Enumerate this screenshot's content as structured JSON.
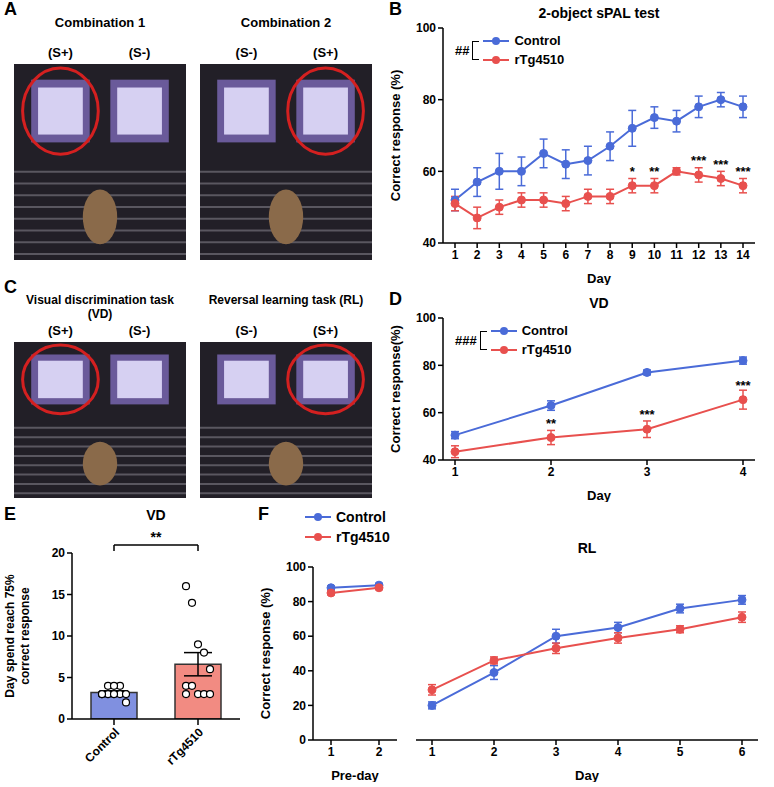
{
  "chart_data": [
    {
      "panel": "B",
      "type": "line",
      "title": "2-object sPAL test",
      "xlabel": "Day",
      "ylabel": "Correct response (%)",
      "categories": [
        1,
        2,
        3,
        4,
        5,
        6,
        7,
        8,
        9,
        10,
        11,
        12,
        13,
        14
      ],
      "ylim": [
        40,
        100
      ],
      "yticks": [
        40,
        60,
        80,
        100
      ],
      "legend": "top-left",
      "annotation": "##",
      "series": [
        {
          "name": "Control",
          "color": "#4a6bd8",
          "marker": "circle",
          "values": [
            52,
            57,
            60,
            60,
            65,
            62,
            63,
            67,
            72,
            75,
            74,
            78,
            80,
            78
          ],
          "errors": [
            3,
            4,
            5,
            4,
            4,
            4,
            4,
            4,
            5,
            3,
            3,
            3,
            2,
            3
          ]
        },
        {
          "name": "rTg4510",
          "color": "#e8504e",
          "marker": "circle",
          "values": [
            51,
            47,
            50,
            52,
            52,
            51,
            53,
            53,
            56,
            56,
            60,
            59,
            58,
            56
          ],
          "errors": [
            2,
            3,
            2,
            2,
            2,
            2,
            2,
            2,
            2,
            2,
            1,
            2,
            2,
            2
          ],
          "significance": [
            null,
            null,
            null,
            null,
            null,
            null,
            null,
            null,
            "*",
            "**",
            null,
            "***",
            "***",
            "***"
          ]
        }
      ]
    },
    {
      "panel": "D",
      "type": "line",
      "title": "VD",
      "xlabel": "Day",
      "ylabel": "Correct response(%)",
      "categories": [
        1,
        2,
        3,
        4
      ],
      "ylim": [
        40,
        100
      ],
      "yticks": [
        40,
        60,
        80,
        100
      ],
      "legend": "top-left",
      "annotation": "###",
      "series": [
        {
          "name": "Control",
          "color": "#4a6bd8",
          "marker": "circle",
          "values": [
            50.5,
            63,
            77,
            82
          ],
          "errors": [
            1.5,
            2,
            1,
            1.5
          ]
        },
        {
          "name": "rTg4510",
          "color": "#e8504e",
          "marker": "circle",
          "values": [
            43.5,
            49.5,
            53,
            65.5
          ],
          "errors": [
            2.5,
            3,
            3.5,
            4
          ],
          "significance": [
            null,
            "**",
            "***",
            "***"
          ]
        }
      ]
    },
    {
      "panel": "E",
      "type": "bar",
      "title": "VD",
      "ylabel": "Day spend reach 75% correct response",
      "categories": [
        "Control",
        "rTg4510"
      ],
      "values": [
        3.2,
        6.6
      ],
      "errors": [
        0.2,
        1.4
      ],
      "points": [
        [
          3,
          3,
          3,
          3,
          3,
          3,
          3,
          3,
          4,
          2,
          3,
          4,
          4
        ],
        [
          16,
          14,
          9,
          8,
          6,
          4,
          4,
          3,
          3,
          3,
          3
        ]
      ],
      "colors": [
        "#8090e0",
        "#f28b82"
      ],
      "ylim": [
        0,
        20
      ],
      "yticks": [
        0,
        5,
        10,
        15,
        20
      ],
      "annotation": "**"
    },
    {
      "panel": "F",
      "type": "line",
      "ylabel": "Correct response (%)",
      "ylim": [
        0,
        100
      ],
      "yticks": [
        0,
        20,
        40,
        60,
        80,
        100
      ],
      "legend": "top",
      "subplots": [
        {
          "xlabel": "Pre-day",
          "categories": [
            1,
            2
          ],
          "series": [
            {
              "name": "Control",
              "color": "#4a6bd8",
              "marker": "circle",
              "values": [
                88,
                89.5
              ],
              "errors": [
                1,
                1
              ]
            },
            {
              "name": "rTg4510",
              "color": "#e8504e",
              "marker": "circle",
              "values": [
                85,
                88
              ],
              "errors": [
                1,
                1
              ]
            }
          ]
        },
        {
          "title": "RL",
          "xlabel": "Day",
          "categories": [
            1,
            2,
            3,
            4,
            5,
            6
          ],
          "series": [
            {
              "name": "Control",
              "color": "#4a6bd8",
              "marker": "circle",
              "values": [
                20,
                39,
                60,
                65,
                76,
                81
              ],
              "errors": [
                2,
                4,
                4,
                3,
                2.5,
                2.5
              ]
            },
            {
              "name": "rTg4510",
              "color": "#e8504e",
              "marker": "circle",
              "values": [
                29,
                46,
                53,
                59,
                64,
                71
              ],
              "errors": [
                3,
                2,
                3,
                3,
                2,
                3
              ]
            }
          ]
        }
      ]
    }
  ],
  "images": [
    {
      "panel": "A",
      "items": [
        {
          "title": "Combination 1",
          "labels": [
            "(S+)",
            "(S-)"
          ]
        },
        {
          "title": "Combination 2",
          "labels": [
            "(S-)",
            "(S+)"
          ]
        }
      ]
    },
    {
      "panel": "C",
      "items": [
        {
          "title": "Visual discrimination task (VD)",
          "labels": [
            "(S+)",
            "(S-)"
          ]
        },
        {
          "title": "Reversal learning task (RL)",
          "labels": [
            "(S-)",
            "(S+)"
          ]
        }
      ]
    }
  ]
}
